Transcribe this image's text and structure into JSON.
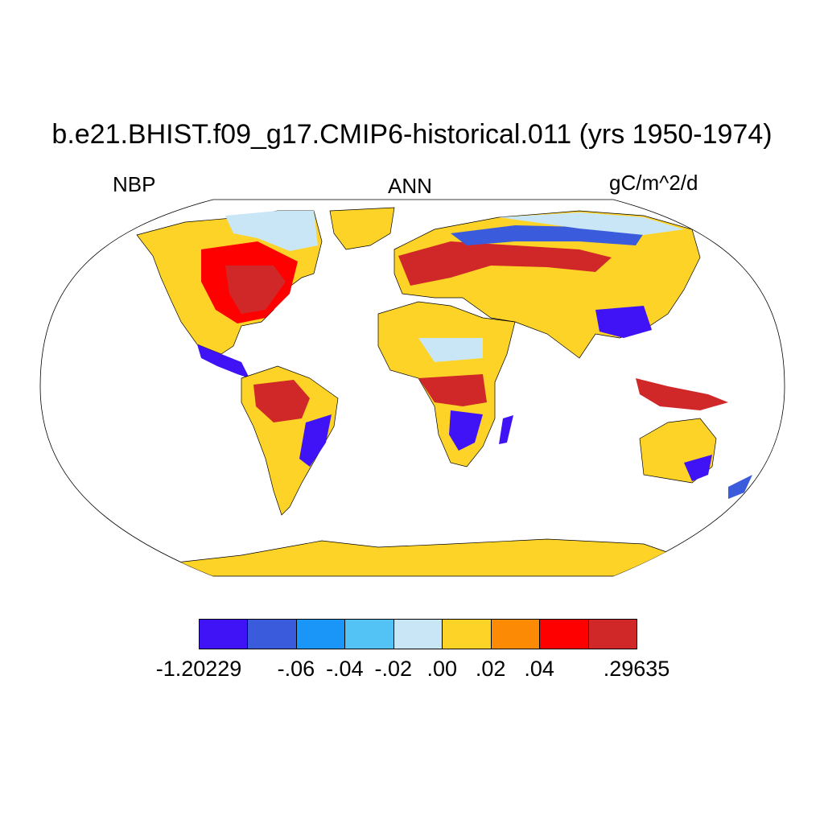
{
  "title": "b.e21.BHIST.f09_g17.CMIP6-historical.011 (yrs 1950-1974)",
  "variable": "NBP",
  "season": "ANN",
  "units": "gC/m^2/d",
  "colorbar": {
    "colors": [
      "#3f13f5",
      "#3b5bdd",
      "#1a96f9",
      "#52c3f4",
      "#c8e6f6",
      "#fdd327",
      "#fc8a05",
      "#fe0000",
      "#d02828"
    ],
    "labels": [
      "-1.20229",
      "-.06",
      "-.04",
      "-.02",
      ".00",
      ".02",
      ".04",
      ".29635"
    ]
  },
  "map": {
    "ocean_color": "#ffffff",
    "projection": "Robinson",
    "dominant_land_color": "#fdd327",
    "antarctica_color": "#fdd327"
  }
}
